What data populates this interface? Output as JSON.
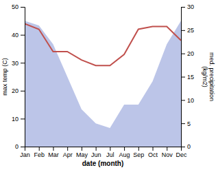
{
  "chart_data": {
    "type": "line",
    "xlabel": "date (month)",
    "ylabel": "max temp (C)",
    "y2label": "med. precipitation\n(kg/m2)",
    "categories": [
      "Jan",
      "Feb",
      "Mar",
      "Apr",
      "May",
      "Jun",
      "Jul",
      "Aug",
      "Sep",
      "Oct",
      "Nov",
      "Dec"
    ],
    "series": [
      {
        "type": "area",
        "axis": "y2",
        "color": "#bcc5e8",
        "values": [
          27,
          26,
          22,
          15,
          8,
          5,
          4,
          9,
          9,
          14,
          22,
          27
        ]
      },
      {
        "type": "line",
        "color": "#c0504d",
        "values": [
          44,
          42,
          34,
          34,
          31,
          29,
          29,
          33,
          42,
          43,
          43,
          38
        ]
      }
    ],
    "ylim": [
      0,
      50
    ],
    "yticks": [
      0,
      10,
      20,
      30,
      40,
      50
    ],
    "y2lim": [
      0,
      30
    ],
    "y2ticks": [
      0,
      5,
      10,
      15,
      20,
      25,
      30
    ]
  }
}
